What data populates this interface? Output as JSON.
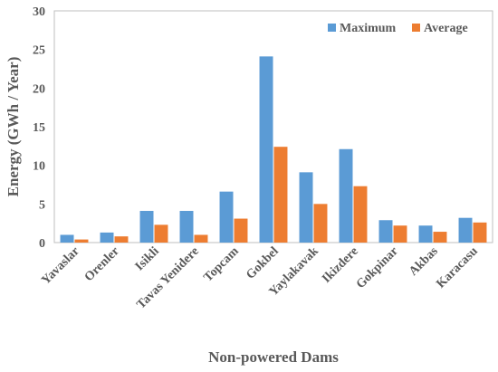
{
  "chart_data": {
    "type": "bar",
    "xlabel": "Non-powered Dams",
    "ylabel": "Energy (GWh / Year)",
    "ylim": [
      0,
      30
    ],
    "yticks": [
      0,
      5,
      10,
      15,
      20,
      25,
      30
    ],
    "grid": false,
    "legend_position": "top-right",
    "categories": [
      "Yavaslar",
      "Orenler",
      "Isikli",
      "Tavas Yenidere",
      "Topcam",
      "Gokbel",
      "Yaylakavak",
      "Ikizdere",
      "Gokpinar",
      "Akbas",
      "Karacasu"
    ],
    "series": [
      {
        "name": "Maximum",
        "color": "#5B9BD5",
        "values": [
          1.0,
          1.3,
          4.1,
          4.1,
          6.6,
          24.1,
          9.1,
          12.1,
          2.9,
          2.2,
          3.2
        ]
      },
      {
        "name": "Average",
        "color": "#ED7D31",
        "values": [
          0.4,
          0.8,
          2.3,
          1.0,
          3.1,
          12.4,
          5.0,
          7.3,
          2.2,
          1.4,
          2.6
        ]
      }
    ]
  }
}
